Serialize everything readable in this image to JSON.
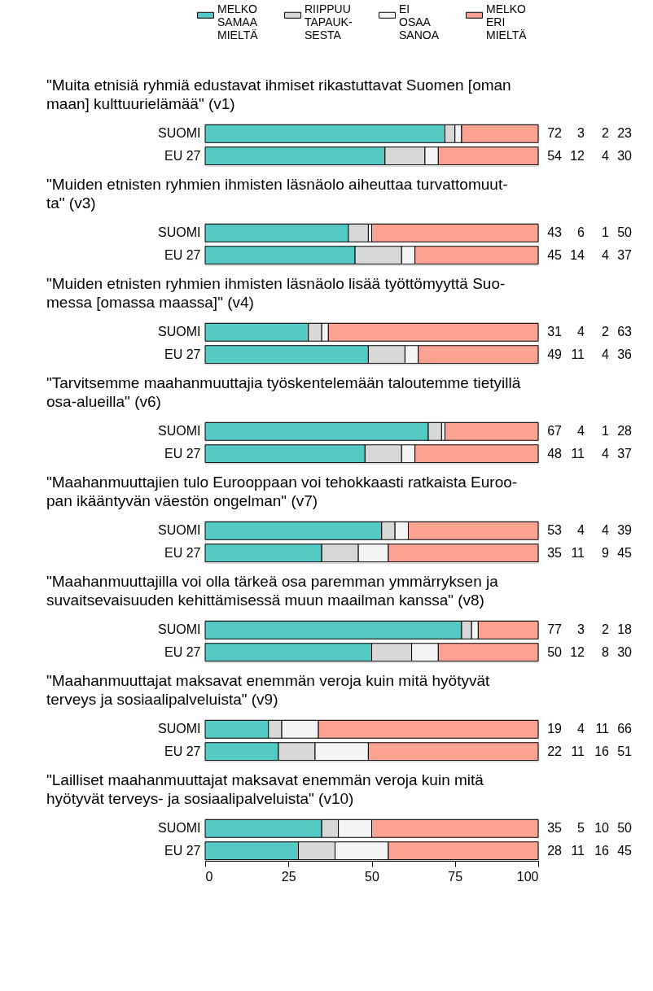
{
  "chart_data": [
    {
      "type": "bar",
      "orientation": "horizontal",
      "stacked": true,
      "legend": "top",
      "title": "\"Muita etnisiä ryhmiä edustavat ihmiset rikastuttavat Suomen [oman\nmaan] kulttuurielämää\" (v1)",
      "categories": [
        "SUOMI",
        "EU 27"
      ],
      "series": [
        {
          "name": "MELKO\nSAMAA\nMIELTÄ",
          "color": "#55c9c4",
          "values": [
            72,
            54
          ]
        },
        {
          "name": "RIIPPUU\nTAPAUK-\nSESTA",
          "color": "#d8d8d8",
          "values": [
            3,
            12
          ]
        },
        {
          "name": "EI\nOSAA\nSANOA",
          "color": "#f4f4f4",
          "values": [
            2,
            4
          ]
        },
        {
          "name": "MELKO\nERI\nMIELTÄ",
          "color": "#fca293",
          "values": [
            23,
            30
          ]
        }
      ],
      "xlim": [
        0,
        100
      ],
      "xticks": [
        0,
        25,
        50,
        75,
        100
      ],
      "tick_labels": "y",
      "data_labels": true
    },
    {
      "type": "bar",
      "orientation": "horizontal",
      "stacked": true,
      "title": "\"Muiden etnisten ryhmien ihmisten läsnäolo aiheuttaa turvattomuut-\nta\" (v3)",
      "categories": [
        "SUOMI",
        "EU 27"
      ],
      "series": [
        {
          "color": "#55c9c4",
          "values": [
            43,
            45
          ]
        },
        {
          "color": "#d8d8d8",
          "values": [
            6,
            14
          ]
        },
        {
          "color": "#f4f4f4",
          "values": [
            1,
            4
          ]
        },
        {
          "color": "#fca293",
          "values": [
            50,
            37
          ]
        }
      ],
      "xlim": [
        0,
        100
      ],
      "xticks": [
        0,
        25,
        50,
        75,
        100
      ],
      "tick_labels": "y",
      "data_labels": true
    },
    {
      "type": "bar",
      "orientation": "horizontal",
      "stacked": true,
      "title": "\"Muiden etnisten ryhmien ihmisten läsnäolo lisää työttömyyttä Suo-\nmessa [omassa maassa]\" (v4)",
      "categories": [
        "SUOMI",
        "EU 27"
      ],
      "series": [
        {
          "color": "#55c9c4",
          "values": [
            31,
            49
          ]
        },
        {
          "color": "#d8d8d8",
          "values": [
            4,
            11
          ]
        },
        {
          "color": "#f4f4f4",
          "values": [
            2,
            4
          ]
        },
        {
          "color": "#fca293",
          "values": [
            63,
            36
          ]
        }
      ],
      "xlim": [
        0,
        100
      ],
      "xticks": [
        0,
        25,
        50,
        75,
        100
      ],
      "tick_labels": "y",
      "data_labels": true
    },
    {
      "type": "bar",
      "orientation": "horizontal",
      "stacked": true,
      "title": "\"Tarvitsemme maahanmuuttajia työskentelemään taloutemme tietyillä\nosa-alueilla\" (v6)",
      "categories": [
        "SUOMI",
        "EU 27"
      ],
      "series": [
        {
          "color": "#55c9c4",
          "values": [
            67,
            48
          ]
        },
        {
          "color": "#d8d8d8",
          "values": [
            4,
            11
          ]
        },
        {
          "color": "#f4f4f4",
          "values": [
            1,
            4
          ]
        },
        {
          "color": "#fca293",
          "values": [
            28,
            37
          ]
        }
      ],
      "xlim": [
        0,
        100
      ],
      "xticks": [
        0,
        25,
        50,
        75,
        100
      ],
      "tick_labels": "y",
      "data_labels": true
    },
    {
      "type": "bar",
      "orientation": "horizontal",
      "stacked": true,
      "title": "\"Maahanmuuttajien tulo Eurooppaan voi tehokkaasti ratkaista Euroo-\npan ikääntyvän väestön ongelman\" (v7)",
      "categories": [
        "SUOMI",
        "EU 27"
      ],
      "series": [
        {
          "color": "#55c9c4",
          "values": [
            53,
            35
          ]
        },
        {
          "color": "#d8d8d8",
          "values": [
            4,
            11
          ]
        },
        {
          "color": "#f4f4f4",
          "values": [
            4,
            9
          ]
        },
        {
          "color": "#fca293",
          "values": [
            39,
            45
          ]
        }
      ],
      "xlim": [
        0,
        100
      ],
      "xticks": [
        0,
        25,
        50,
        75,
        100
      ],
      "tick_labels": "y",
      "data_labels": true
    },
    {
      "type": "bar",
      "orientation": "horizontal",
      "stacked": true,
      "title": "\"Maahanmuuttajilla voi olla tärkeä osa paremman ymmärryksen ja\nsuvaitsevaisuuden kehittämisessä muun maailman kanssa\" (v8)",
      "categories": [
        "SUOMI",
        "EU 27"
      ],
      "series": [
        {
          "color": "#55c9c4",
          "values": [
            77,
            50
          ]
        },
        {
          "color": "#d8d8d8",
          "values": [
            3,
            12
          ]
        },
        {
          "color": "#f4f4f4",
          "values": [
            2,
            8
          ]
        },
        {
          "color": "#fca293",
          "values": [
            18,
            30
          ]
        }
      ],
      "xlim": [
        0,
        100
      ],
      "xticks": [
        0,
        25,
        50,
        75,
        100
      ],
      "tick_labels": "y",
      "data_labels": true
    },
    {
      "type": "bar",
      "orientation": "horizontal",
      "stacked": true,
      "title": "\"Maahanmuuttajat maksavat enemmän veroja kuin mitä hyötyvät\nterveys ja sosiaalipalveluista\" (v9)",
      "categories": [
        "SUOMI",
        "EU 27"
      ],
      "series": [
        {
          "color": "#55c9c4",
          "values": [
            19,
            22
          ]
        },
        {
          "color": "#d8d8d8",
          "values": [
            4,
            11
          ]
        },
        {
          "color": "#f4f4f4",
          "values": [
            11,
            16
          ]
        },
        {
          "color": "#fca293",
          "values": [
            66,
            51
          ]
        }
      ],
      "xlim": [
        0,
        100
      ],
      "xticks": [
        0,
        25,
        50,
        75,
        100
      ],
      "tick_labels": "y",
      "data_labels": true
    },
    {
      "type": "bar",
      "orientation": "horizontal",
      "stacked": true,
      "title": "\"Lailliset maahanmuuttajat maksavat enemmän veroja kuin mitä\nhyötyvät terveys- ja sosiaalipalveluista\" (v10)",
      "categories": [
        "SUOMI",
        "EU 27"
      ],
      "series": [
        {
          "color": "#55c9c4",
          "values": [
            35,
            28
          ]
        },
        {
          "color": "#d8d8d8",
          "values": [
            5,
            11
          ]
        },
        {
          "color": "#f4f4f4",
          "values": [
            10,
            16
          ]
        },
        {
          "color": "#fca293",
          "values": [
            50,
            45
          ]
        }
      ],
      "xlim": [
        0,
        100
      ],
      "xticks": [
        0,
        25,
        50,
        75,
        100
      ],
      "data_labels": true
    }
  ]
}
